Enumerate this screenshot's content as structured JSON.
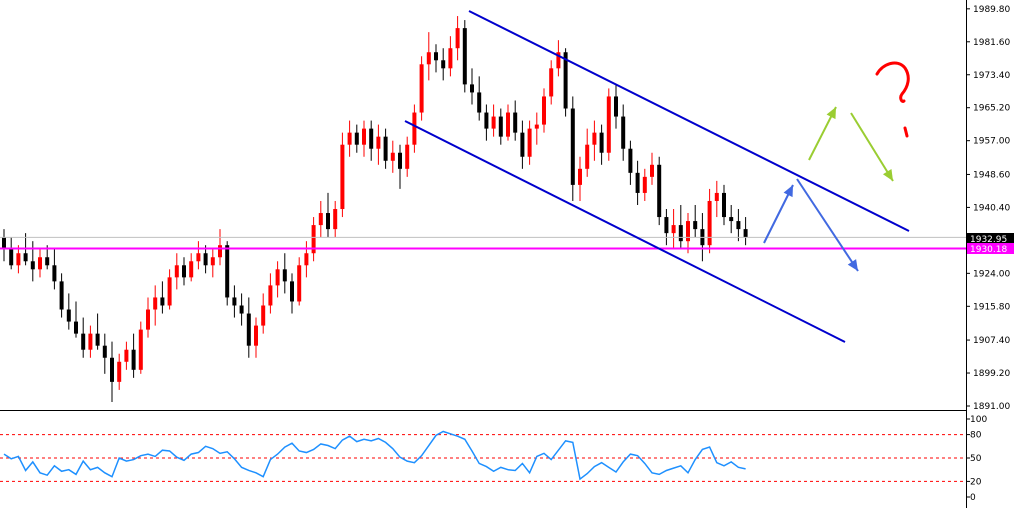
{
  "chart_data": [
    {
      "type": "candlestick",
      "panel": "main",
      "y_ticks": [
        "1989.80",
        "1981.60",
        "1973.40",
        "1965.20",
        "1957.00",
        "1948.60",
        "1940.40",
        "1924.00",
        "1915.80",
        "1907.40",
        "1899.20",
        "1891.00"
      ],
      "y_tick_values": [
        1989.8,
        1981.6,
        1973.4,
        1965.2,
        1957.0,
        1948.6,
        1940.4,
        1924.0,
        1915.8,
        1907.4,
        1899.2,
        1891.0
      ],
      "ylim": [
        1890.5,
        1991.0
      ],
      "current_price_label": "1932.95",
      "current_price": 1932.95,
      "horizontal_level_label": "1930.18",
      "horizontal_level": 1930.18,
      "candles_ohlc": [
        [
          1933,
          1935,
          1927,
          1930
        ],
        [
          1930,
          1933,
          1925,
          1926
        ],
        [
          1926,
          1931,
          1924,
          1929
        ],
        [
          1929,
          1934,
          1926,
          1927
        ],
        [
          1927,
          1932,
          1922,
          1925
        ],
        [
          1925,
          1930,
          1923,
          1928
        ],
        [
          1928,
          1931,
          1925,
          1926
        ],
        [
          1926,
          1930,
          1920,
          1922
        ],
        [
          1922,
          1924,
          1913,
          1915
        ],
        [
          1915,
          1919,
          1910,
          1912
        ],
        [
          1912,
          1917,
          1908,
          1909
        ],
        [
          1909,
          1913,
          1903,
          1905
        ],
        [
          1905,
          1911,
          1903,
          1909
        ],
        [
          1909,
          1914,
          1905,
          1906
        ],
        [
          1906,
          1909,
          1899,
          1903
        ],
        [
          1903,
          1907,
          1892,
          1897
        ],
        [
          1897,
          1904,
          1895,
          1902
        ],
        [
          1902,
          1907,
          1900,
          1905
        ],
        [
          1905,
          1909,
          1898,
          1900
        ],
        [
          1900,
          1912,
          1899,
          1910
        ],
        [
          1910,
          1918,
          1908,
          1915
        ],
        [
          1915,
          1921,
          1911,
          1918
        ],
        [
          1918,
          1922,
          1914,
          1916
        ],
        [
          1916,
          1925,
          1915,
          1923
        ],
        [
          1923,
          1929,
          1920,
          1926
        ],
        [
          1926,
          1928,
          1921,
          1923
        ],
        [
          1923,
          1929,
          1922,
          1927
        ],
        [
          1927,
          1932,
          1925,
          1929
        ],
        [
          1929,
          1931,
          1924,
          1926
        ],
        [
          1926,
          1930,
          1923,
          1928
        ],
        [
          1928,
          1935,
          1926,
          1931
        ],
        [
          1931,
          1932,
          1916,
          1918
        ],
        [
          1918,
          1921,
          1913,
          1916
        ],
        [
          1916,
          1919,
          1911,
          1914
        ],
        [
          1914,
          1918,
          1903,
          1906
        ],
        [
          1906,
          1913,
          1903,
          1911
        ],
        [
          1911,
          1919,
          1909,
          1916
        ],
        [
          1916,
          1924,
          1914,
          1921
        ],
        [
          1921,
          1927,
          1918,
          1925
        ],
        [
          1925,
          1929,
          1919,
          1922
        ],
        [
          1922,
          1924,
          1914,
          1917
        ],
        [
          1917,
          1928,
          1916,
          1926
        ],
        [
          1926,
          1932,
          1923,
          1929
        ],
        [
          1929,
          1938,
          1927,
          1936
        ],
        [
          1936,
          1942,
          1933,
          1939
        ],
        [
          1939,
          1944,
          1933,
          1935
        ],
        [
          1935,
          1942,
          1933,
          1940
        ],
        [
          1940,
          1959,
          1938,
          1956
        ],
        [
          1956,
          1962,
          1953,
          1959
        ],
        [
          1959,
          1961,
          1954,
          1956
        ],
        [
          1956,
          1962,
          1953,
          1960
        ],
        [
          1960,
          1962,
          1952,
          1955
        ],
        [
          1955,
          1961,
          1951,
          1958
        ],
        [
          1958,
          1960,
          1950,
          1952
        ],
        [
          1952,
          1957,
          1949,
          1954
        ],
        [
          1954,
          1956,
          1945,
          1950
        ],
        [
          1950,
          1958,
          1948,
          1956
        ],
        [
          1956,
          1966,
          1954,
          1964
        ],
        [
          1964,
          1978,
          1962,
          1976
        ],
        [
          1976,
          1984,
          1972,
          1979
        ],
        [
          1979,
          1981,
          1974,
          1977
        ],
        [
          1977,
          1980,
          1972,
          1975
        ],
        [
          1975,
          1983,
          1973,
          1980
        ],
        [
          1980,
          1988,
          1977,
          1985
        ],
        [
          1985,
          1987,
          1969,
          1971
        ],
        [
          1971,
          1975,
          1966,
          1969
        ],
        [
          1969,
          1973,
          1962,
          1964
        ],
        [
          1964,
          1966,
          1957,
          1960
        ],
        [
          1960,
          1966,
          1958,
          1963
        ],
        [
          1963,
          1965,
          1956,
          1958
        ],
        [
          1958,
          1966,
          1957,
          1964
        ],
        [
          1964,
          1967,
          1957,
          1959
        ],
        [
          1959,
          1962,
          1950,
          1953
        ],
        [
          1953,
          1962,
          1951,
          1960
        ],
        [
          1960,
          1964,
          1956,
          1961
        ],
        [
          1961,
          1970,
          1959,
          1968
        ],
        [
          1968,
          1977,
          1966,
          1975
        ],
        [
          1975,
          1982,
          1973,
          1979
        ],
        [
          1979,
          1980,
          1963,
          1965
        ],
        [
          1965,
          1968,
          1942,
          1946
        ],
        [
          1946,
          1953,
          1942,
          1950
        ],
        [
          1950,
          1960,
          1948,
          1956
        ],
        [
          1956,
          1962,
          1952,
          1959
        ],
        [
          1959,
          1961,
          1951,
          1954
        ],
        [
          1954,
          1970,
          1952,
          1968
        ],
        [
          1968,
          1971,
          1960,
          1963
        ],
        [
          1963,
          1966,
          1952,
          1955
        ],
        [
          1955,
          1957,
          1946,
          1949
        ],
        [
          1949,
          1952,
          1941,
          1944
        ],
        [
          1944,
          1950,
          1942,
          1948
        ],
        [
          1948,
          1954,
          1946,
          1951
        ],
        [
          1951,
          1953,
          1936,
          1938
        ],
        [
          1938,
          1940,
          1931,
          1934
        ],
        [
          1934,
          1940,
          1930,
          1936
        ],
        [
          1936,
          1941,
          1930,
          1932
        ],
        [
          1932,
          1939,
          1929,
          1937
        ],
        [
          1937,
          1941,
          1933,
          1935
        ],
        [
          1935,
          1939,
          1927,
          1931
        ],
        [
          1931,
          1945,
          1929,
          1942
        ],
        [
          1942,
          1947,
          1938,
          1944
        ],
        [
          1944,
          1946,
          1936,
          1938
        ],
        [
          1938,
          1941,
          1934,
          1937
        ],
        [
          1937,
          1940,
          1932,
          1935
        ],
        [
          1935,
          1938,
          1931,
          1933
        ]
      ]
    },
    {
      "type": "line",
      "panel": "oscillator",
      "y_ticks": [
        "100",
        "80",
        "50",
        "20",
        "0"
      ],
      "y_tick_values": [
        100,
        80,
        50,
        20,
        0
      ],
      "ylim": [
        0,
        100
      ],
      "levels": [
        80,
        50,
        20
      ],
      "series": [
        {
          "values": [
            55,
            49,
            52,
            34,
            45,
            31,
            28,
            40,
            33,
            35,
            29,
            46,
            35,
            38,
            31,
            26,
            50,
            46,
            48,
            53,
            55,
            52,
            60,
            59,
            51,
            47,
            55,
            57,
            65,
            62,
            56,
            58,
            49,
            38,
            34,
            31,
            26,
            48,
            55,
            64,
            69,
            59,
            57,
            61,
            68,
            66,
            62,
            73,
            78,
            71,
            74,
            72,
            75,
            70,
            62,
            51,
            46,
            44,
            53,
            66,
            79,
            84,
            81,
            78,
            74,
            59,
            43,
            39,
            33,
            38,
            35,
            34,
            43,
            31,
            52,
            56,
            48,
            60,
            72,
            70,
            23,
            30,
            39,
            44,
            38,
            32,
            45,
            55,
            53,
            43,
            31,
            29,
            34,
            37,
            40,
            31,
            48,
            61,
            64,
            44,
            40,
            45,
            38,
            36
          ]
        }
      ]
    }
  ],
  "annotations": {
    "question_mark": "?"
  },
  "colors": {
    "bull": "#ff0000",
    "bear": "#000000",
    "channel": "#0000cd",
    "level": "#ff00ff",
    "oscillator_line": "#1e90ff",
    "oscillator_levels": "#ff0000",
    "arrow_blue": "#4169e1",
    "arrow_green": "#9acd32",
    "question": "#ff0000",
    "current_price_box": "#000000"
  }
}
